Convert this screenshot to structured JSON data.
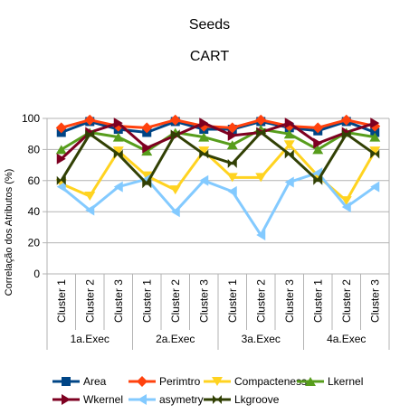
{
  "chart_data": {
    "type": "line",
    "title": "Seeds",
    "subtitle": "CART",
    "ylabel": "Correlação dos Atributos (%)",
    "ylim": [
      0,
      100
    ],
    "yticks": [
      0,
      20,
      40,
      60,
      80,
      100
    ],
    "grid": true,
    "legend_position": "bottom",
    "groups": [
      "1a.Exec",
      "2a.Exec",
      "3a.Exec",
      "4a.Exec"
    ],
    "categories": [
      "Cluster 1",
      "Cluster 2",
      "Cluster 3",
      "Cluster 1",
      "Cluster 2",
      "Cluster 3",
      "Cluster 1",
      "Cluster 2",
      "Cluster 3",
      "Cluster 1",
      "Cluster 2",
      "Cluster 3"
    ],
    "series": [
      {
        "name": "Area",
        "color": "#004586",
        "marker": "square",
        "values": [
          91,
          98,
          93,
          91,
          98,
          93,
          93,
          98,
          94,
          92,
          98,
          91
        ]
      },
      {
        "name": "Perimtro",
        "color": "#ff420e",
        "marker": "diamond",
        "values": [
          94,
          99,
          95,
          94,
          99,
          95,
          94,
          99,
          95,
          94,
          99,
          95
        ]
      },
      {
        "name": "Compacteness",
        "color": "#ffd320",
        "marker": "triangle-down",
        "values": [
          58,
          50,
          79,
          63,
          54,
          79,
          62,
          62,
          83,
          63,
          47,
          79
        ]
      },
      {
        "name": "Lkernel",
        "color": "#579d1c",
        "marker": "triangle-up",
        "values": [
          80,
          91,
          88,
          79,
          91,
          88,
          83,
          93,
          90,
          80,
          91,
          88
        ]
      },
      {
        "name": "Wkernel",
        "color": "#7e0021",
        "marker": "triangle-right",
        "values": [
          74,
          91,
          97,
          81,
          89,
          97,
          89,
          91,
          97,
          84,
          91,
          97
        ]
      },
      {
        "name": "asymetry",
        "color": "#83caff",
        "marker": "triangle-left",
        "values": [
          56,
          41,
          56,
          61,
          40,
          60,
          53,
          25,
          59,
          65,
          43,
          56
        ]
      },
      {
        "name": "Lkgroove",
        "color": "#314004",
        "marker": "bowtie",
        "values": [
          60,
          90,
          77,
          58,
          90,
          77,
          71,
          91,
          77,
          60,
          90,
          77
        ]
      }
    ]
  }
}
